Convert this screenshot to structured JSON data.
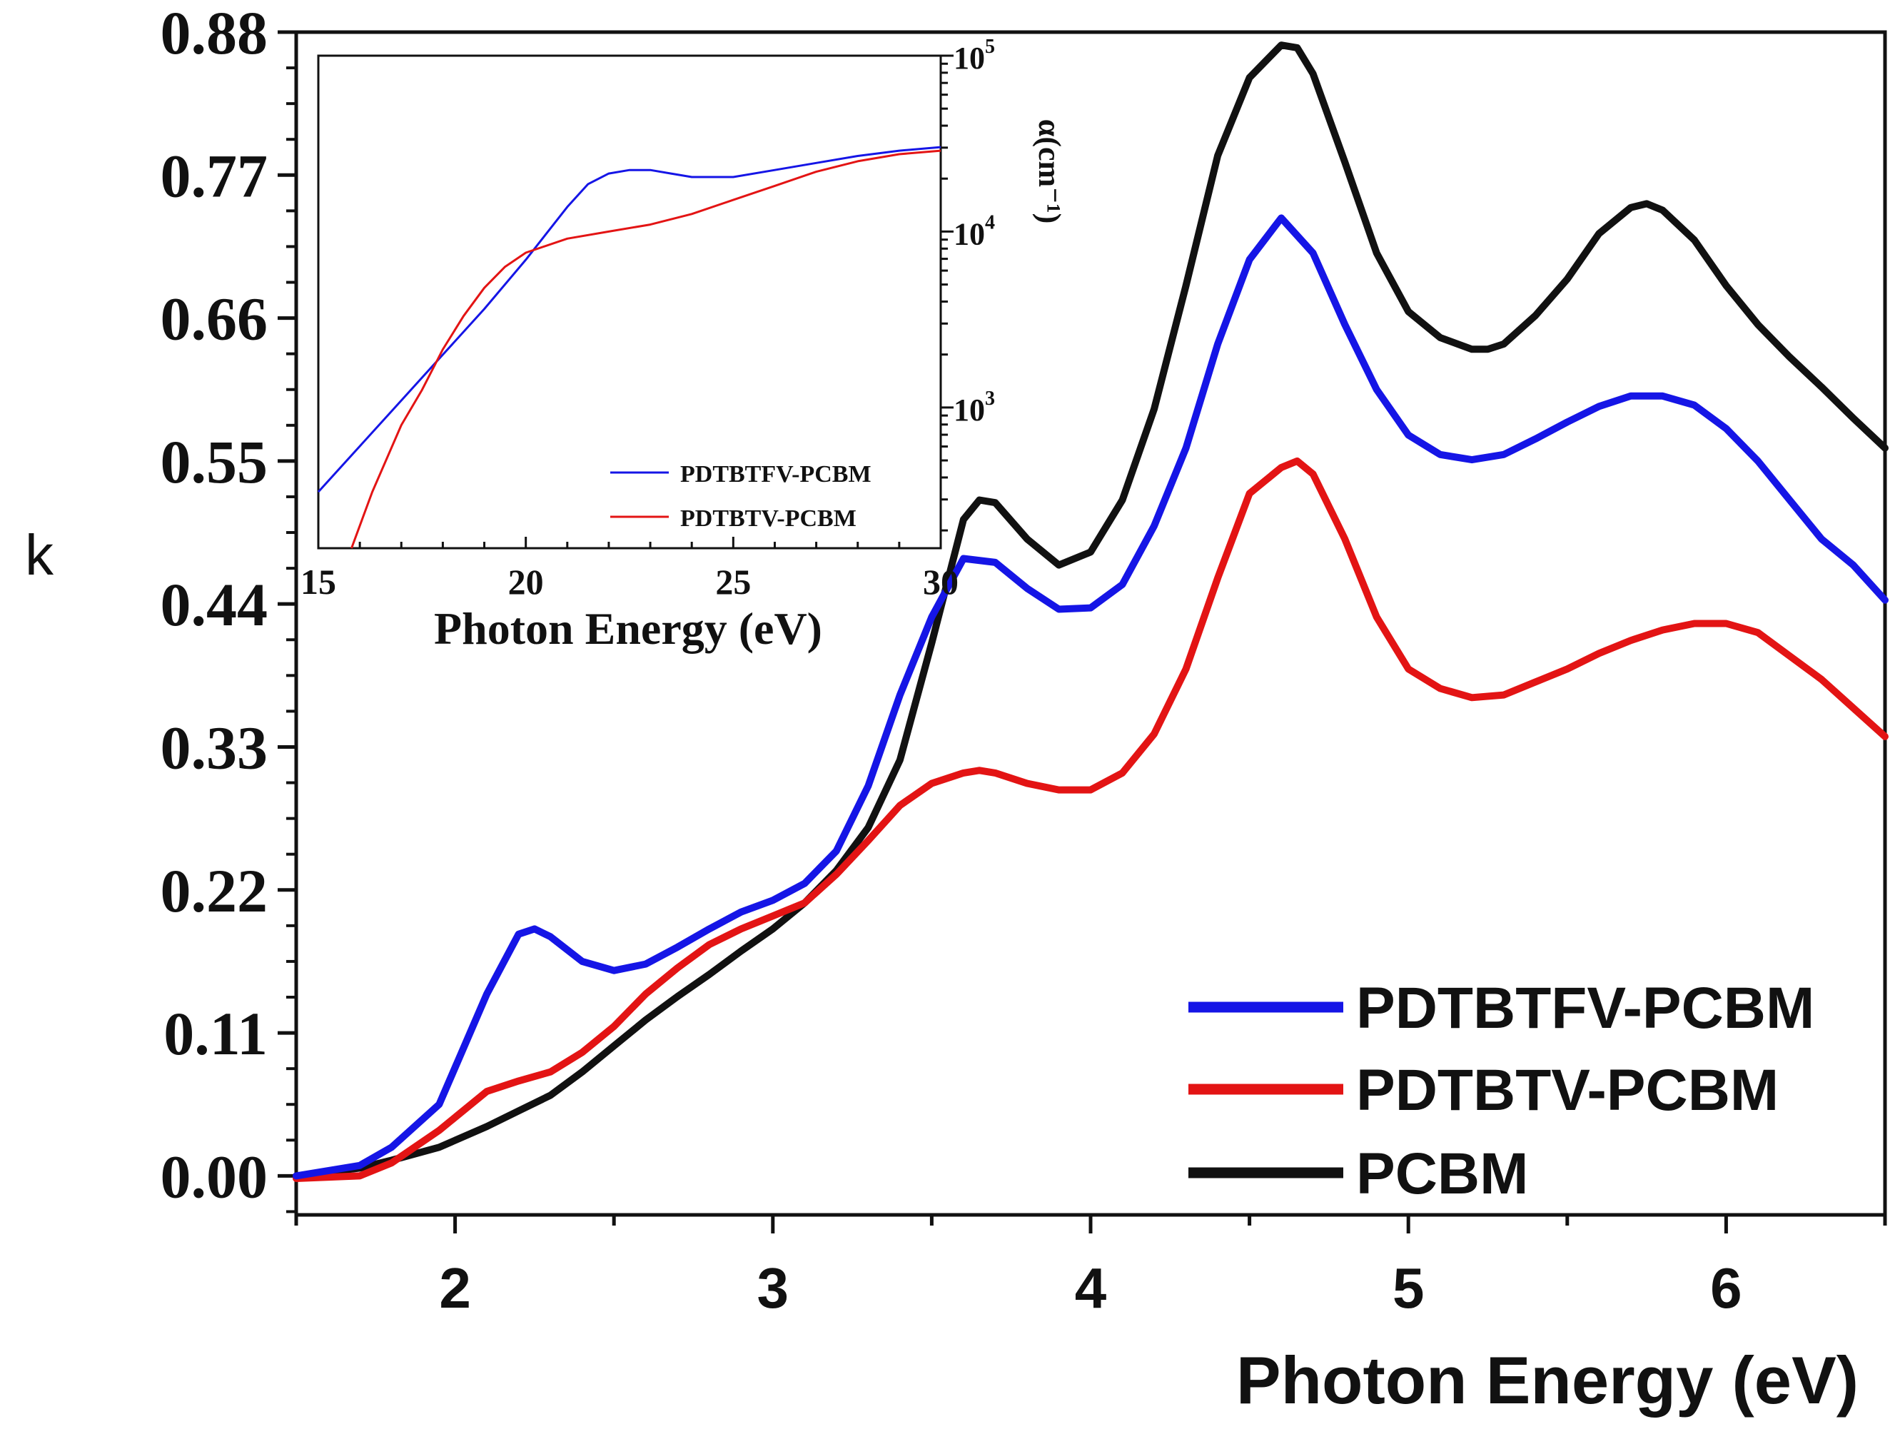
{
  "chart_data": [
    {
      "type": "line",
      "name": "main",
      "xlabel": "Photon Energy (eV)",
      "ylabel": "k",
      "xlim": [
        1.5,
        6.5
      ],
      "ylim": [
        -0.03,
        0.88
      ],
      "x_ticks": [
        2,
        3,
        4,
        5,
        6
      ],
      "x_tick_labels": [
        "2",
        "3",
        "4",
        "5",
        "6"
      ],
      "y_ticks": [
        0.0,
        0.11,
        0.22,
        0.33,
        0.44,
        0.55,
        0.66,
        0.77,
        0.88
      ],
      "y_tick_labels": [
        "0.00",
        "0.11",
        "0.22",
        "0.33",
        "0.44",
        "0.55",
        "0.66",
        "0.77",
        "0.88"
      ],
      "legend_position": "bottom-right",
      "grid": false,
      "series": [
        {
          "name": "PDTBTFV-PCBM",
          "color": "#1515e6",
          "x": [
            1.5,
            1.7,
            1.8,
            1.95,
            2.1,
            2.2,
            2.25,
            2.3,
            2.4,
            2.5,
            2.6,
            2.7,
            2.8,
            2.9,
            3.0,
            3.1,
            3.2,
            3.3,
            3.4,
            3.5,
            3.6,
            3.7,
            3.8,
            3.9,
            4.0,
            4.1,
            4.2,
            4.3,
            4.4,
            4.5,
            4.6,
            4.7,
            4.8,
            4.9,
            5.0,
            5.1,
            5.2,
            5.3,
            5.4,
            5.5,
            5.6,
            5.7,
            5.8,
            5.9,
            6.0,
            6.1,
            6.2,
            6.3,
            6.4,
            6.5
          ],
          "values": [
            0.0,
            0.008,
            0.022,
            0.055,
            0.14,
            0.186,
            0.19,
            0.184,
            0.165,
            0.158,
            0.163,
            0.176,
            0.19,
            0.203,
            0.212,
            0.225,
            0.25,
            0.3,
            0.37,
            0.43,
            0.475,
            0.472,
            0.452,
            0.436,
            0.437,
            0.455,
            0.5,
            0.56,
            0.64,
            0.705,
            0.737,
            0.71,
            0.655,
            0.605,
            0.57,
            0.555,
            0.551,
            0.555,
            0.567,
            0.58,
            0.592,
            0.6,
            0.6,
            0.593,
            0.575,
            0.55,
            0.52,
            0.49,
            0.47,
            0.443
          ]
        },
        {
          "name": "PDTBTV-PCBM",
          "color": "#e31414",
          "x": [
            1.5,
            1.7,
            1.8,
            1.95,
            2.1,
            2.2,
            2.3,
            2.4,
            2.5,
            2.6,
            2.7,
            2.8,
            2.9,
            3.0,
            3.1,
            3.2,
            3.3,
            3.4,
            3.5,
            3.6,
            3.65,
            3.7,
            3.8,
            3.9,
            4.0,
            4.1,
            4.2,
            4.3,
            4.4,
            4.5,
            4.6,
            4.65,
            4.7,
            4.8,
            4.9,
            5.0,
            5.1,
            5.2,
            5.3,
            5.4,
            5.5,
            5.6,
            5.7,
            5.8,
            5.9,
            6.0,
            6.1,
            6.2,
            6.3,
            6.4,
            6.5
          ],
          "values": [
            -0.002,
            0.0,
            0.01,
            0.035,
            0.065,
            0.073,
            0.08,
            0.095,
            0.115,
            0.14,
            0.16,
            0.178,
            0.19,
            0.2,
            0.21,
            0.232,
            0.258,
            0.285,
            0.302,
            0.31,
            0.312,
            0.31,
            0.302,
            0.297,
            0.297,
            0.31,
            0.34,
            0.39,
            0.46,
            0.525,
            0.545,
            0.55,
            0.54,
            0.49,
            0.43,
            0.39,
            0.375,
            0.368,
            0.37,
            0.38,
            0.39,
            0.402,
            0.412,
            0.42,
            0.425,
            0.425,
            0.418,
            0.4,
            0.382,
            0.36,
            0.338
          ]
        },
        {
          "name": "PCBM",
          "color": "#111111",
          "x": [
            1.5,
            1.7,
            1.8,
            1.95,
            2.1,
            2.2,
            2.3,
            2.4,
            2.5,
            2.6,
            2.7,
            2.8,
            2.9,
            3.0,
            3.1,
            3.2,
            3.3,
            3.4,
            3.5,
            3.6,
            3.65,
            3.7,
            3.8,
            3.9,
            4.0,
            4.1,
            4.2,
            4.3,
            4.4,
            4.5,
            4.6,
            4.65,
            4.7,
            4.8,
            4.9,
            5.0,
            5.1,
            5.2,
            5.25,
            5.3,
            5.4,
            5.5,
            5.6,
            5.7,
            5.75,
            5.8,
            5.9,
            6.0,
            6.1,
            6.2,
            6.3,
            6.4,
            6.5
          ],
          "values": [
            0.0,
            0.006,
            0.012,
            0.022,
            0.038,
            0.05,
            0.062,
            0.08,
            0.1,
            0.12,
            0.138,
            0.155,
            0.173,
            0.19,
            0.21,
            0.235,
            0.268,
            0.32,
            0.41,
            0.505,
            0.52,
            0.518,
            0.49,
            0.47,
            0.48,
            0.52,
            0.59,
            0.685,
            0.785,
            0.845,
            0.87,
            0.868,
            0.848,
            0.78,
            0.71,
            0.665,
            0.645,
            0.636,
            0.636,
            0.64,
            0.662,
            0.69,
            0.725,
            0.745,
            0.748,
            0.743,
            0.72,
            0.685,
            0.655,
            0.63,
            0.607,
            0.583,
            0.56
          ]
        }
      ]
    },
    {
      "type": "line",
      "name": "inset",
      "xlabel": "Photon Energy (eV)",
      "ylabel": "α(cm⁻¹)",
      "y_scale": "log",
      "xlim": [
        15,
        30
      ],
      "ylim_log10": [
        2.2,
        5.0
      ],
      "x_ticks": [
        15,
        20,
        25,
        30
      ],
      "x_tick_labels": [
        "15",
        "20",
        "25",
        "30"
      ],
      "y_ticks_log10": [
        3,
        4,
        5
      ],
      "y_tick_labels": [
        "10",
        "10",
        "10"
      ],
      "y_tick_exponents": [
        "3",
        "4",
        "5"
      ],
      "legend_position": "bottom-right",
      "series": [
        {
          "name": "PDTBTFV-PCBM",
          "color": "#1515e6",
          "x": [
            15,
            16,
            17,
            18,
            19,
            20,
            21,
            21.5,
            22,
            22.5,
            23,
            23.5,
            24,
            24.5,
            25,
            26,
            27,
            28,
            29,
            30
          ],
          "log10_values": [
            2.52,
            2.78,
            3.04,
            3.3,
            3.56,
            3.84,
            4.14,
            4.27,
            4.33,
            4.35,
            4.35,
            4.33,
            4.31,
            4.31,
            4.31,
            4.35,
            4.39,
            4.43,
            4.46,
            4.48
          ]
        },
        {
          "name": "PDTBTV-PCBM",
          "color": "#e31414",
          "x": [
            15.8,
            16.3,
            17,
            17.5,
            18,
            18.5,
            19,
            19.5,
            20,
            21,
            22,
            23,
            24,
            25,
            26,
            27,
            28,
            29,
            30
          ],
          "log10_values": [
            2.2,
            2.52,
            2.9,
            3.1,
            3.33,
            3.52,
            3.68,
            3.8,
            3.88,
            3.96,
            4.0,
            4.04,
            4.1,
            4.18,
            4.26,
            4.34,
            4.4,
            4.44,
            4.46
          ]
        }
      ]
    }
  ]
}
